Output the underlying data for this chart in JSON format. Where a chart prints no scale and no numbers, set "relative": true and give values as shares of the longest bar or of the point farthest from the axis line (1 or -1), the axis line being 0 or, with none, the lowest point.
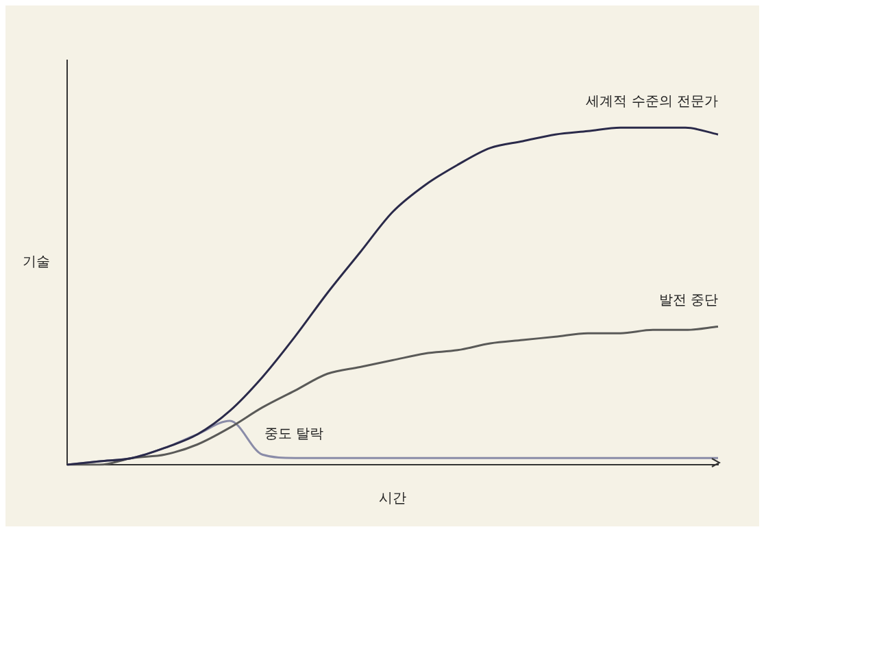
{
  "chart_data": {
    "type": "line",
    "relative": true,
    "xlabel": "시간",
    "ylabel": "기술",
    "categories": [
      null,
      null,
      null,
      null,
      null,
      null,
      null,
      null,
      null,
      null,
      null,
      null,
      null,
      null,
      null,
      null,
      null,
      null,
      null,
      null,
      null
    ],
    "series": [
      {
        "name": "세계적 수준의 전문가",
        "color": "#2a2a4a",
        "values": [
          0,
          0.01,
          0.02,
          0.05,
          0.09,
          0.16,
          0.26,
          0.38,
          0.51,
          0.63,
          0.75,
          0.83,
          0.89,
          0.94,
          0.96,
          0.98,
          0.99,
          1,
          1,
          1,
          0.98
        ]
      },
      {
        "name": "발전 중단",
        "color": "#5a5a58",
        "values": [
          0,
          0,
          0.02,
          0.03,
          0.06,
          0.11,
          0.17,
          0.22,
          0.27,
          0.29,
          0.31,
          0.33,
          0.34,
          0.36,
          0.37,
          0.38,
          0.39,
          0.39,
          0.4,
          0.4,
          0.41
        ]
      },
      {
        "name": "중도 탈락",
        "color": "#8a8ca8",
        "values": [
          0,
          0.01,
          0.02,
          0.05,
          0.09,
          0.13,
          0.03,
          0.02,
          0.02,
          0.02,
          0.02,
          0.02,
          0.02,
          0.02,
          0.02,
          0.02,
          0.02,
          0.02,
          0.02,
          0.02,
          0.02
        ]
      }
    ],
    "legend": false,
    "grid": false,
    "tick_labels": false,
    "marker": "none",
    "line_style": "solid"
  }
}
